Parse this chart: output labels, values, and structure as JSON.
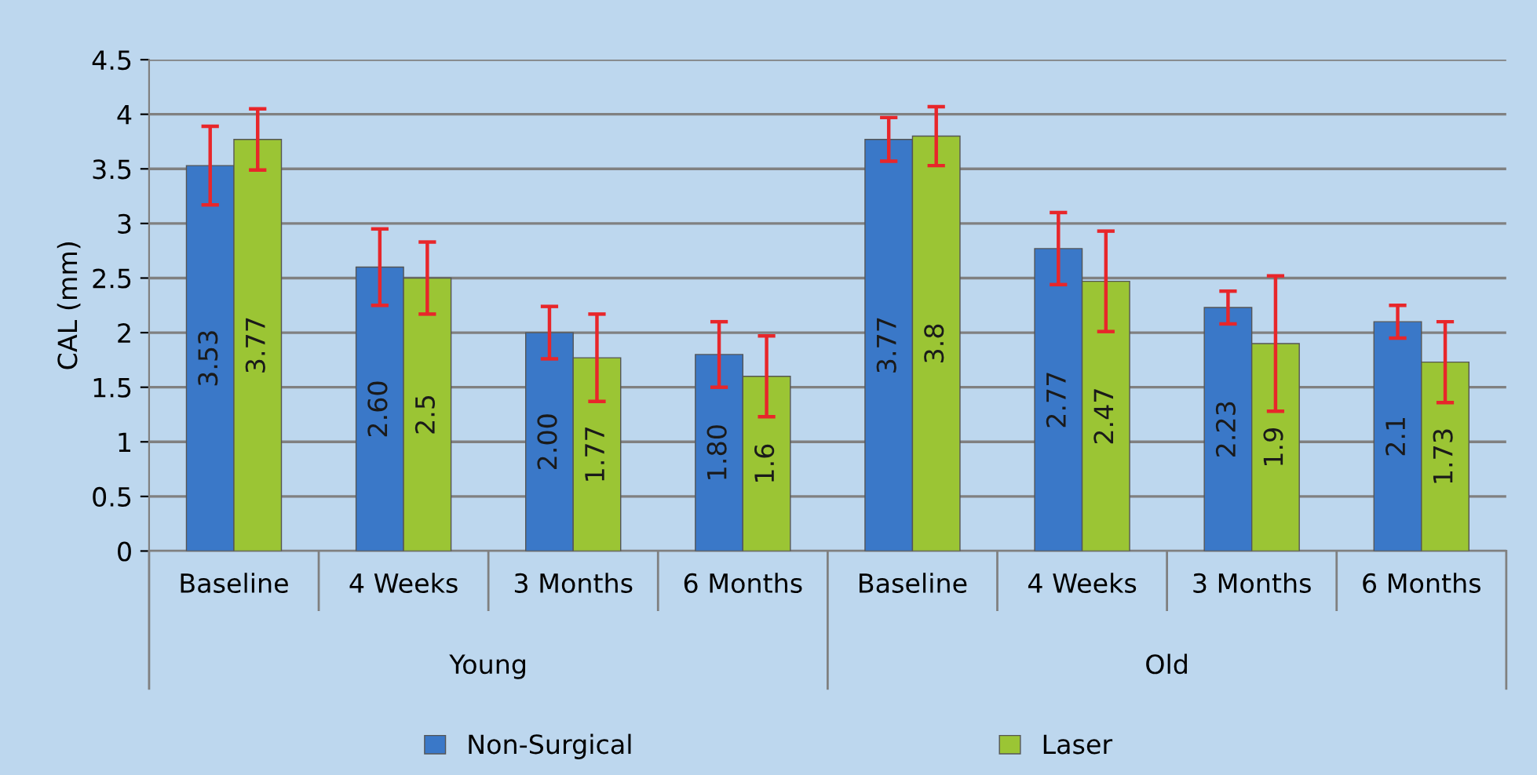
{
  "chart_data": {
    "type": "bar",
    "ylabel": "CAL (mm)",
    "categories": [
      "Baseline",
      "4 Weeks",
      "3 Months",
      "6 Months",
      "Baseline",
      "4 Weeks",
      "3 Months",
      "6 Months"
    ],
    "annotations": [
      "Young",
      "Old"
    ],
    "series": [
      {
        "name": "Non-Surgical",
        "color": "#3a78c8",
        "values": [
          3.53,
          2.6,
          2.0,
          1.8,
          3.77,
          2.77,
          2.23,
          2.1
        ],
        "errors": [
          0.36,
          0.35,
          0.24,
          0.3,
          0.2,
          0.33,
          0.15,
          0.15
        ],
        "value_labels": [
          "3.53",
          "2.60",
          "2.00",
          "1.80",
          "3.77",
          "2.77",
          "2.23",
          "2.1"
        ]
      },
      {
        "name": "Laser",
        "color": "#9bc534",
        "values": [
          3.77,
          2.5,
          1.77,
          1.6,
          3.8,
          2.47,
          1.9,
          1.73
        ],
        "errors": [
          0.28,
          0.33,
          0.4,
          0.37,
          0.27,
          0.46,
          0.62,
          0.37
        ],
        "value_labels": [
          "3.77",
          "2.5",
          "1.77",
          "1.6",
          "3.8",
          "2.47",
          "1.9",
          "1.73"
        ]
      }
    ],
    "ylim": [
      0,
      4.5
    ],
    "yticks": [
      0,
      0.5,
      1,
      1.5,
      2,
      2.5,
      3,
      3.5,
      4,
      4.5
    ],
    "grid": "y",
    "legend": "bottom"
  }
}
